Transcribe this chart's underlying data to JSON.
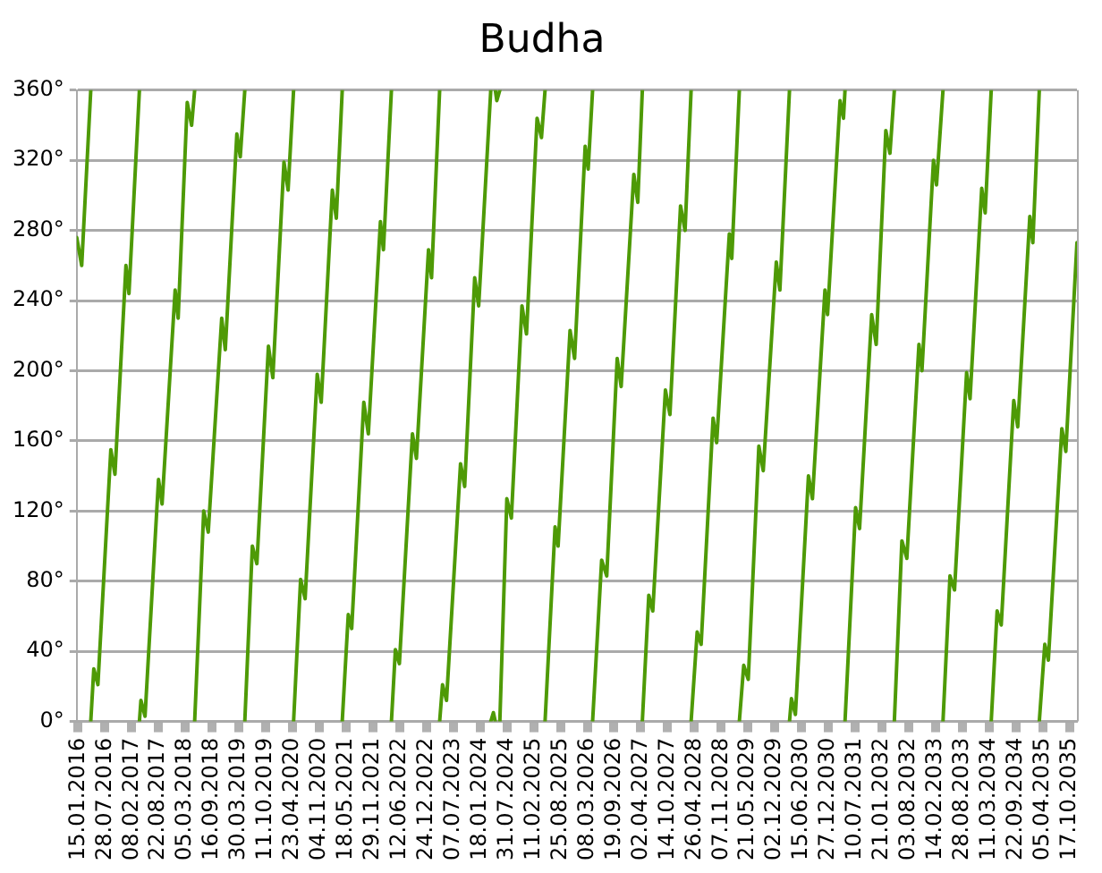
{
  "chart_data": {
    "type": "line",
    "title": "Budha",
    "xlim": [
      "2016-01-05",
      "2035-12-10"
    ],
    "xticks": [
      {
        "value": "2016-01-15",
        "label": "15.01.2016"
      },
      {
        "value": "2016-07-28",
        "label": "28.07.2016"
      },
      {
        "value": "2017-02-08",
        "label": "08.02.2017"
      },
      {
        "value": "2017-08-22",
        "label": "22.08.2017"
      },
      {
        "value": "2018-03-05",
        "label": "05.03.2018"
      },
      {
        "value": "2018-09-16",
        "label": "16.09.2018"
      },
      {
        "value": "2019-03-30",
        "label": "30.03.2019"
      },
      {
        "value": "2019-10-11",
        "label": "11.10.2019"
      },
      {
        "value": "2020-04-23",
        "label": "23.04.2020"
      },
      {
        "value": "2020-11-04",
        "label": "04.11.2020"
      },
      {
        "value": "2021-05-18",
        "label": "18.05.2021"
      },
      {
        "value": "2021-11-29",
        "label": "29.11.2021"
      },
      {
        "value": "2022-06-12",
        "label": "12.06.2022"
      },
      {
        "value": "2022-12-24",
        "label": "24.12.2022"
      },
      {
        "value": "2023-07-07",
        "label": "07.07.2023"
      },
      {
        "value": "2024-01-18",
        "label": "18.01.2024"
      },
      {
        "value": "2024-07-31",
        "label": "31.07.2024"
      },
      {
        "value": "2025-02-11",
        "label": "11.02.2025"
      },
      {
        "value": "2025-08-25",
        "label": "25.08.2025"
      },
      {
        "value": "2026-03-08",
        "label": "08.03.2026"
      },
      {
        "value": "2026-09-19",
        "label": "19.09.2026"
      },
      {
        "value": "2027-04-02",
        "label": "02.04.2027"
      },
      {
        "value": "2027-10-14",
        "label": "14.10.2027"
      },
      {
        "value": "2028-04-26",
        "label": "26.04.2028"
      },
      {
        "value": "2028-11-07",
        "label": "07.11.2028"
      },
      {
        "value": "2029-05-21",
        "label": "21.05.2029"
      },
      {
        "value": "2029-12-02",
        "label": "02.12.2029"
      },
      {
        "value": "2030-06-15",
        "label": "15.06.2030"
      },
      {
        "value": "2030-12-27",
        "label": "27.12.2030"
      },
      {
        "value": "2031-07-10",
        "label": "10.07.2031"
      },
      {
        "value": "2032-01-21",
        "label": "21.01.2032"
      },
      {
        "value": "2032-08-03",
        "label": "03.08.2032"
      },
      {
        "value": "2033-02-14",
        "label": "14.02.2033"
      },
      {
        "value": "2033-08-28",
        "label": "28.08.2033"
      },
      {
        "value": "2034-03-11",
        "label": "11.03.2034"
      },
      {
        "value": "2034-09-22",
        "label": "22.09.2034"
      },
      {
        "value": "2035-04-05",
        "label": "05.04.2035"
      },
      {
        "value": "2035-10-17",
        "label": "17.10.2035"
      }
    ],
    "ylim": [
      0,
      360
    ],
    "yticks": [
      {
        "value": 0,
        "label": "0°"
      },
      {
        "value": 40,
        "label": "40°"
      },
      {
        "value": 80,
        "label": "80°"
      },
      {
        "value": 120,
        "label": "120°"
      },
      {
        "value": 160,
        "label": "160°"
      },
      {
        "value": 200,
        "label": "200°"
      },
      {
        "value": 240,
        "label": "240°"
      },
      {
        "value": 280,
        "label": "280°"
      },
      {
        "value": 320,
        "label": "320°"
      },
      {
        "value": 360,
        "label": "360°"
      }
    ],
    "grid": "y",
    "legend": false,
    "marker": "none",
    "line_style": "solid",
    "series": [
      {
        "color": "#4e9a06",
        "x": [
          "2016-01-05",
          "2016-02-10",
          "2016-04-16"
        ],
        "values": [
          276,
          260,
          360
        ]
      },
      {
        "color": "#4e9a06",
        "x": [
          "2016-04-16",
          "2016-05-08",
          "2016-06-07",
          "2016-09-09",
          "2016-10-09",
          "2016-12-28",
          "2017-01-19",
          "2017-04-05"
        ],
        "values": [
          0,
          30,
          21,
          155,
          141,
          260,
          244,
          360
        ]
      },
      {
        "color": "#4e9a06",
        "x": [
          "2017-04-05",
          "2017-04-16",
          "2017-05-16",
          "2017-08-22",
          "2017-09-17",
          "2017-12-21",
          "2018-01-12",
          "2018-03-19",
          "2018-04-20",
          "2018-05-12"
        ],
        "values": [
          0,
          12,
          3,
          138,
          124,
          246,
          230,
          353,
          340,
          360
        ]
      },
      {
        "color": "#4e9a06",
        "x": [
          "2018-05-12",
          "2018-07-17",
          "2018-08-19",
          "2018-11-25",
          "2018-12-21",
          "2019-03-15",
          "2019-04-09",
          "2019-05-12"
        ],
        "values": [
          0,
          120,
          108,
          230,
          212,
          335,
          322,
          360
        ]
      },
      {
        "color": "#4e9a06",
        "x": [
          "2019-05-12",
          "2019-07-06",
          "2019-08-08",
          "2019-10-31",
          "2019-12-02",
          "2020-02-21",
          "2020-03-22",
          "2020-05-01"
        ],
        "values": [
          0,
          100,
          90,
          214,
          196,
          319,
          303,
          360
        ]
      },
      {
        "color": "#4e9a06",
        "x": [
          "2020-05-01",
          "2020-06-21",
          "2020-07-24",
          "2020-10-20",
          "2020-11-18",
          "2021-02-07",
          "2021-03-08",
          "2021-04-20"
        ],
        "values": [
          0,
          81,
          70,
          198,
          182,
          303,
          287,
          360
        ]
      },
      {
        "color": "#4e9a06",
        "x": [
          "2021-04-20",
          "2021-06-03",
          "2021-06-28",
          "2021-09-24",
          "2021-10-27",
          "2022-01-23",
          "2022-02-14",
          "2022-04-13"
        ],
        "values": [
          0,
          61,
          53,
          182,
          164,
          285,
          269,
          360
        ]
      },
      {
        "color": "#4e9a06",
        "x": [
          "2022-04-13",
          "2022-05-12",
          "2022-06-10",
          "2022-09-13",
          "2022-10-12",
          "2023-01-08",
          "2023-01-30",
          "2023-03-30"
        ],
        "values": [
          0,
          41,
          33,
          164,
          150,
          269,
          253,
          360
        ]
      },
      {
        "color": "#4e9a06",
        "x": [
          "2023-03-30",
          "2023-04-20",
          "2023-05-19",
          "2023-08-29",
          "2023-09-28",
          "2023-12-10",
          "2024-01-08",
          "2024-04-05"
        ],
        "values": [
          0,
          21,
          12,
          147,
          134,
          253,
          237,
          360
        ]
      },
      {
        "color": "#4e9a06",
        "x": [
          "2024-04-05",
          "2024-04-24",
          "2024-05-08"
        ],
        "values": [
          0,
          5,
          0
        ]
      },
      {
        "color": "#4e9a06",
        "x": [
          "2024-05-08",
          "2024-05-19",
          "2024-06-10"
        ],
        "values": [
          360,
          354,
          360
        ]
      },
      {
        "color": "#4e9a06",
        "x": [
          "2024-06-10",
          "2024-07-31",
          "2024-09-02",
          "2024-11-18",
          "2024-12-21",
          "2025-03-08",
          "2025-04-09",
          "2025-05-05"
        ],
        "values": [
          0,
          127,
          116,
          237,
          221,
          344,
          333,
          360
        ]
      },
      {
        "color": "#4e9a06",
        "x": [
          "2025-05-05",
          "2025-07-17",
          "2025-08-08",
          "2025-11-03",
          "2025-12-06",
          "2026-02-21",
          "2026-03-15",
          "2026-04-16"
        ],
        "values": [
          0,
          111,
          100,
          223,
          207,
          328,
          315,
          360
        ]
      },
      {
        "color": "#4e9a06",
        "x": [
          "2026-04-16",
          "2026-06-21",
          "2026-07-28",
          "2026-10-12",
          "2026-11-10",
          "2027-02-10",
          "2027-03-11",
          "2027-04-13"
        ],
        "values": [
          0,
          92,
          83,
          207,
          191,
          312,
          296,
          360
        ]
      },
      {
        "color": "#4e9a06",
        "x": [
          "2027-04-13",
          "2027-05-30",
          "2027-06-28",
          "2027-09-28",
          "2027-10-31",
          "2028-01-16",
          "2028-02-18",
          "2028-04-02"
        ],
        "values": [
          0,
          72,
          63,
          189,
          175,
          294,
          280,
          360
        ]
      },
      {
        "color": "#4e9a06",
        "x": [
          "2028-04-02",
          "2028-05-16",
          "2028-06-14",
          "2028-09-09",
          "2028-10-05",
          "2029-01-05",
          "2029-01-23",
          "2029-03-19"
        ],
        "values": [
          0,
          51,
          44,
          173,
          159,
          278,
          264,
          360
        ]
      },
      {
        "color": "#4e9a06",
        "x": [
          "2029-03-19",
          "2029-04-20",
          "2029-05-23",
          "2029-08-08",
          "2029-09-09",
          "2029-12-13",
          "2030-01-08",
          "2030-03-19"
        ],
        "values": [
          0,
          32,
          24,
          157,
          143,
          262,
          246,
          360
        ]
      },
      {
        "color": "#4e9a06",
        "x": [
          "2030-03-19",
          "2030-04-02",
          "2030-05-01",
          "2030-08-04",
          "2030-09-02",
          "2030-12-02",
          "2030-12-21",
          "2031-03-22",
          "2031-04-16",
          "2031-04-27"
        ],
        "values": [
          0,
          13,
          4,
          140,
          127,
          246,
          232,
          354,
          344,
          360
        ]
      },
      {
        "color": "#4e9a06",
        "x": [
          "2031-04-27",
          "2031-07-13",
          "2031-08-11",
          "2031-11-07",
          "2031-12-10",
          "2032-02-18",
          "2032-03-19",
          "2032-04-20"
        ],
        "values": [
          0,
          122,
          110,
          232,
          215,
          337,
          324,
          360
        ]
      },
      {
        "color": "#4e9a06",
        "x": [
          "2032-04-20",
          "2032-06-14",
          "2032-07-20",
          "2032-10-16",
          "2032-11-07",
          "2033-01-30",
          "2033-02-21",
          "2033-04-09"
        ],
        "values": [
          0,
          103,
          93,
          215,
          200,
          320,
          306,
          360
        ]
      },
      {
        "color": "#4e9a06",
        "x": [
          "2033-04-09",
          "2033-05-30",
          "2033-07-02",
          "2033-09-28",
          "2033-10-23",
          "2034-01-16",
          "2034-02-10",
          "2034-03-26"
        ],
        "values": [
          0,
          83,
          75,
          199,
          184,
          304,
          290,
          360
        ]
      },
      {
        "color": "#4e9a06",
        "x": [
          "2034-03-26",
          "2034-05-08",
          "2034-06-07",
          "2034-09-06",
          "2034-10-05",
          "2035-01-01",
          "2035-01-23",
          "2035-03-11"
        ],
        "values": [
          0,
          63,
          55,
          183,
          168,
          288,
          273,
          360
        ]
      },
      {
        "color": "#4e9a06",
        "x": [
          "2035-03-11",
          "2035-04-20",
          "2035-05-16",
          "2035-08-22",
          "2035-09-20",
          "2035-12-10"
        ],
        "values": [
          0,
          44,
          35,
          167,
          154,
          273
        ]
      }
    ]
  }
}
